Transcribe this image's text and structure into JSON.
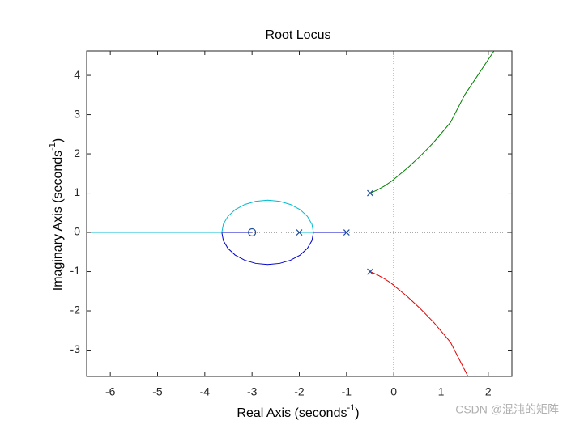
{
  "chart_data": {
    "type": "line",
    "title": "Root Locus",
    "xlabel": [
      "Real Axis (seconds",
      "-1",
      ")"
    ],
    "ylabel": [
      "Imaginary Axis (seconds",
      "-1",
      ")"
    ],
    "xlim": [
      -6.5,
      2.5
    ],
    "ylim": [
      -3.67,
      4.62
    ],
    "xticks": [
      -6,
      -5,
      -4,
      -3,
      -2,
      -1,
      0,
      1,
      2
    ],
    "yticks": [
      -3,
      -2,
      -1,
      0,
      1,
      2,
      3,
      4
    ],
    "series": [
      {
        "color": "#0000cd",
        "x": [
          -1,
          -1.7,
          -1.733,
          -1.83,
          -1.984,
          -2.185,
          -2.419,
          -2.67,
          -2.921,
          -3.155,
          -3.356,
          -3.51,
          -3.607,
          -3.64,
          -3
        ],
        "y": [
          0,
          0,
          -0.212,
          -0.41,
          -0.58,
          -0.71,
          -0.792,
          -0.82,
          -0.792,
          -0.71,
          -0.58,
          -0.41,
          -0.212,
          0,
          0
        ]
      },
      {
        "color": "#00bcd0",
        "x": [
          -2,
          -1.7,
          -1.733,
          -1.83,
          -1.984,
          -2.185,
          -2.419,
          -2.67,
          -2.921,
          -3.155,
          -3.356,
          -3.51,
          -3.607,
          -3.64,
          -6.5
        ],
        "y": [
          0,
          0,
          0.212,
          0.41,
          0.58,
          0.71,
          0.792,
          0.82,
          0.792,
          0.71,
          0.58,
          0.41,
          0.212,
          0,
          0
        ]
      },
      {
        "color": "#008000",
        "x": [
          -0.5,
          -0.35,
          -0.2,
          -0.05,
          0.1,
          0.3,
          0.55,
          0.85,
          1.2,
          1.5,
          2.12
        ],
        "y": [
          1,
          1.08,
          1.18,
          1.3,
          1.45,
          1.65,
          1.93,
          2.3,
          2.8,
          3.5,
          4.62
        ]
      },
      {
        "color": "#e00000",
        "x": [
          -0.5,
          -0.35,
          -0.2,
          -0.05,
          0.1,
          0.3,
          0.55,
          0.85,
          1.2,
          1.57
        ],
        "y": [
          -1,
          -1.08,
          -1.18,
          -1.3,
          -1.45,
          -1.65,
          -1.93,
          -2.3,
          -2.8,
          -3.67
        ]
      }
    ],
    "poles": {
      "color": "#1f4e9c",
      "x": [
        -0.5,
        -0.5,
        -1,
        -2
      ],
      "y": [
        1,
        -1,
        0,
        0
      ]
    },
    "zeros": {
      "color": "#1f4e9c",
      "x": [
        -3
      ],
      "y": [
        0
      ]
    },
    "watermark": "CSDN @混沌的矩阵"
  }
}
